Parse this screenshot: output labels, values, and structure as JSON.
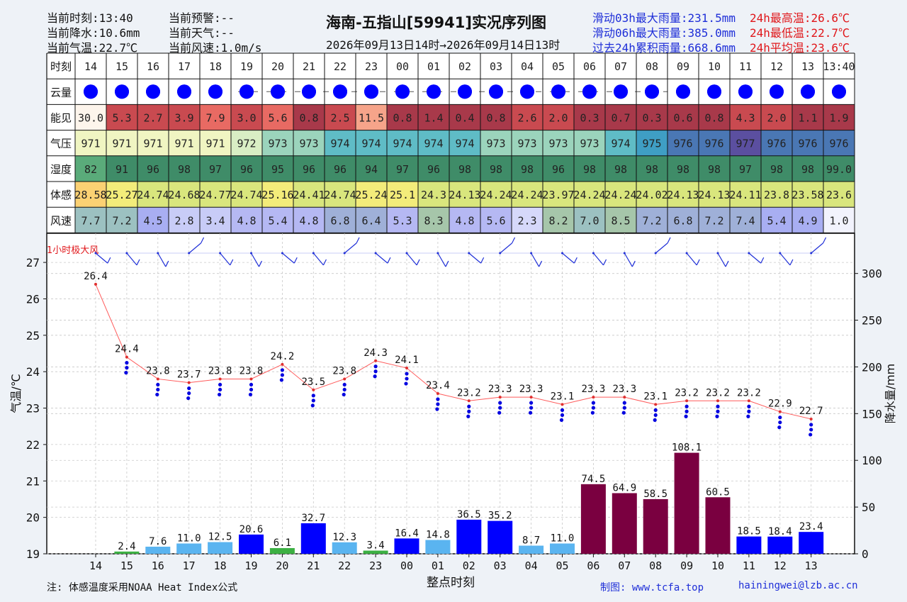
{
  "header": {
    "left": [
      {
        "label": "当前时刻:",
        "value": "13:40"
      },
      {
        "label": "当前降水:",
        "value": "10.6mm"
      },
      {
        "label": "当前气温:",
        "value": "22.7℃"
      }
    ],
    "mid": [
      {
        "label": "当前预警:",
        "value": "--"
      },
      {
        "label": "当前天气:",
        "value": "--"
      },
      {
        "label": "当前风速:",
        "value": "1.0m/s"
      }
    ],
    "title": "海南-五指山[59941]实况序列图",
    "subtitle": "2026年09月13日14时→2026年09月14日13时",
    "right_blue": [
      "滑动03h最大雨量:231.5mm",
      "滑动06h最大雨量:385.0mm",
      "过去24h累积雨量:668.6mm"
    ],
    "right_red": [
      "24h最高温:26.6℃",
      "24h最低温:22.7℃",
      "24h平均温:23.6℃"
    ]
  },
  "table": {
    "row_labels": [
      "时刻",
      "云量",
      "能见",
      "气压",
      "湿度",
      "体感",
      "风速"
    ],
    "hours": [
      "14",
      "15",
      "16",
      "17",
      "18",
      "19",
      "20",
      "21",
      "22",
      "23",
      "00",
      "01",
      "02",
      "03",
      "04",
      "05",
      "06",
      "07",
      "08",
      "09",
      "10",
      "11",
      "12",
      "13",
      "13:40"
    ],
    "visibility": [
      "30.0",
      "5.3",
      "2.7",
      "3.9",
      "7.9",
      "3.0",
      "5.6",
      "0.8",
      "2.5",
      "11.5",
      "0.8",
      "1.4",
      "0.4",
      "0.8",
      "2.6",
      "2.0",
      "0.3",
      "0.7",
      "0.3",
      "0.6",
      "0.8",
      "4.3",
      "2.0",
      "1.1",
      "1.9"
    ],
    "pressure": [
      "971",
      "971",
      "971",
      "971",
      "971",
      "972",
      "973",
      "973",
      "974",
      "974",
      "974",
      "974",
      "974",
      "973",
      "973",
      "973",
      "973",
      "974",
      "975",
      "976",
      "976",
      "977",
      "976",
      "976",
      "976"
    ],
    "humidity": [
      "82",
      "91",
      "96",
      "98",
      "97",
      "96",
      "95",
      "96",
      "96",
      "94",
      "97",
      "96",
      "98",
      "98",
      "98",
      "96",
      "98",
      "98",
      "98",
      "98",
      "98",
      "97",
      "98",
      "98",
      "99.0"
    ],
    "feels": [
      "28.58",
      "25.27",
      "24.74",
      "24.68",
      "24.77",
      "24.74",
      "25.16",
      "24.41",
      "24.74",
      "25.24",
      "25.1",
      "24.3",
      "24.13",
      "24.24",
      "24.24",
      "23.97",
      "24.24",
      "24.24",
      "24.02",
      "24.13",
      "24.13",
      "24.11",
      "23.8",
      "23.58",
      "23.6"
    ],
    "wind": [
      "7.7",
      "7.2",
      "4.5",
      "2.8",
      "3.4",
      "4.8",
      "5.4",
      "4.8",
      "6.8",
      "6.4",
      "5.3",
      "8.3",
      "4.8",
      "5.6",
      "2.3",
      "8.2",
      "7.0",
      "8.5",
      "7.2",
      "6.8",
      "7.2",
      "7.4",
      "5.4",
      "4.9",
      "1.0"
    ]
  },
  "colors": {
    "visibility": [
      "#fdf5ec",
      "#c94a50",
      "#c94a50",
      "#c94a50",
      "#e86a63",
      "#c94a50",
      "#e86a63",
      "#a8394a",
      "#c94a50",
      "#f6a48a",
      "#a8394a",
      "#a8394a",
      "#a8394a",
      "#a8394a",
      "#c94a50",
      "#c94a50",
      "#a8394a",
      "#a8394a",
      "#a8394a",
      "#a8394a",
      "#a8394a",
      "#c94a50",
      "#c94a50",
      "#a8394a",
      "#a8394a"
    ],
    "pressure": [
      "#f0f5c2",
      "#f0f5c2",
      "#f0f5c2",
      "#f0f5c2",
      "#f0f5c2",
      "#d9eec4",
      "#9bd4bc",
      "#9bd4bc",
      "#5fbcc6",
      "#5fbcc6",
      "#5fbcc6",
      "#5fbcc6",
      "#5fbcc6",
      "#9bd4bc",
      "#9bd4bc",
      "#9bd4bc",
      "#9bd4bc",
      "#5fbcc6",
      "#3f9ec4",
      "#4a77b4",
      "#4a77b4",
      "#5b4fa0",
      "#4a77b4",
      "#4a77b4",
      "#4a77b4"
    ],
    "humidity": [
      "#5aab7a",
      "#3f8c68",
      "#3f8c68",
      "#3f8c68",
      "#3f8c68",
      "#3f8c68",
      "#3f8c68",
      "#3f8c68",
      "#3f8c68",
      "#3f8c68",
      "#3f8c68",
      "#3f8c68",
      "#3f8c68",
      "#3f8c68",
      "#3f8c68",
      "#3f8c68",
      "#3f8c68",
      "#3f8c68",
      "#3f8c68",
      "#3f8c68",
      "#3f8c68",
      "#3f8c68",
      "#3f8c68",
      "#3f8c68",
      "#3f8c68"
    ],
    "feels": [
      "#fbd173",
      "#f3ec7a",
      "#d9e67d",
      "#d9e67d",
      "#d9e67d",
      "#d9e67d",
      "#f3ec7a",
      "#d9e67d",
      "#d9e67d",
      "#f3ec7a",
      "#f3ec7a",
      "#d9e67d",
      "#d9e67d",
      "#d9e67d",
      "#d9e67d",
      "#d9e67d",
      "#d9e67d",
      "#d9e67d",
      "#d9e67d",
      "#d9e67d",
      "#d9e67d",
      "#d9e67d",
      "#d9e67d",
      "#d9e67d",
      "#d9e67d"
    ],
    "wind": [
      "#9cc1c1",
      "#9cc1c1",
      "#a8aef2",
      "#c8ccf7",
      "#c8ccf7",
      "#b5b8f3",
      "#b5b8f3",
      "#b5b8f3",
      "#9fb0d8",
      "#9fb0d8",
      "#b5b8f3",
      "#a6c6aa",
      "#b5b8f3",
      "#b5b8f3",
      "#d6d8fa",
      "#a6c6aa",
      "#9cc1c1",
      "#a6c6aa",
      "#9fb0d8",
      "#9fb0d8",
      "#9fb0d8",
      "#9fb0d8",
      "#a8aef2",
      "#a8aef2",
      "#f2f3fd"
    ],
    "rain_light_green": "#3cb043",
    "rain_light_blue": "#5ab4f0",
    "rain_blue": "#0000ff",
    "rain_heavy": "#7a0040",
    "temp_line": "#ff5a5a",
    "rain_dots": "#0000e0"
  },
  "chart_data": {
    "type": "bar+line",
    "x_label": "整点时刻",
    "x_ticks": [
      "14",
      "15",
      "16",
      "17",
      "18",
      "19",
      "20",
      "21",
      "22",
      "23",
      "00",
      "01",
      "02",
      "03",
      "04",
      "05",
      "06",
      "07",
      "08",
      "09",
      "10",
      "11",
      "12",
      "13"
    ],
    "temperature": {
      "ylabel": "气温/℃",
      "ylim": [
        19,
        27.8
      ],
      "y_ticks": [
        19,
        20,
        21,
        22,
        23,
        24,
        25,
        26,
        27
      ],
      "values": [
        26.4,
        24.4,
        23.8,
        23.7,
        23.8,
        23.8,
        24.2,
        23.5,
        23.8,
        24.3,
        24.1,
        23.4,
        23.2,
        23.3,
        23.3,
        23.1,
        23.3,
        23.3,
        23.1,
        23.2,
        23.2,
        23.2,
        22.9,
        22.7
      ],
      "labels": [
        "26.4",
        "24.4",
        "23.8",
        "23.7",
        "23.8",
        "23.8",
        "24.2",
        "23.5",
        "23.8",
        "24.3",
        "24.1",
        "23.4",
        "23.2",
        "23.3",
        "23.3",
        "23.1",
        "23.3",
        "23.3",
        "23.1",
        "23.2",
        "23.2",
        "23.2",
        "22.9",
        "22.7"
      ]
    },
    "precipitation": {
      "ylabel": "降水量/mm",
      "ylim": [
        0,
        343
      ],
      "y_ticks": [
        0,
        50,
        100,
        150,
        200,
        250,
        300
      ],
      "values": [
        null,
        2.4,
        7.6,
        11.0,
        12.5,
        20.6,
        6.1,
        32.7,
        12.3,
        3.4,
        16.4,
        14.8,
        36.5,
        35.2,
        8.7,
        11.0,
        74.5,
        64.9,
        58.5,
        108.1,
        60.5,
        18.5,
        18.4,
        23.4
      ],
      "labels": [
        "",
        "2.4",
        "7.6",
        "11.0",
        "12.5",
        "20.6",
        "6.1",
        "32.7",
        "12.3",
        "3.4",
        "16.4",
        "14.8",
        "36.5",
        "35.2",
        "8.7",
        "11.0",
        "74.5",
        "64.9",
        "58.5",
        "108.1",
        "60.5",
        "18.5",
        "18.4",
        "23.4"
      ]
    },
    "gust_label": "1小时极大风",
    "grid": true
  },
  "footer": {
    "note": "注: 体感温度采用NOAA Heat Index公式",
    "credit": "制图: www.tcfa.top",
    "email": "hainingwei@lzb.ac.cn"
  }
}
